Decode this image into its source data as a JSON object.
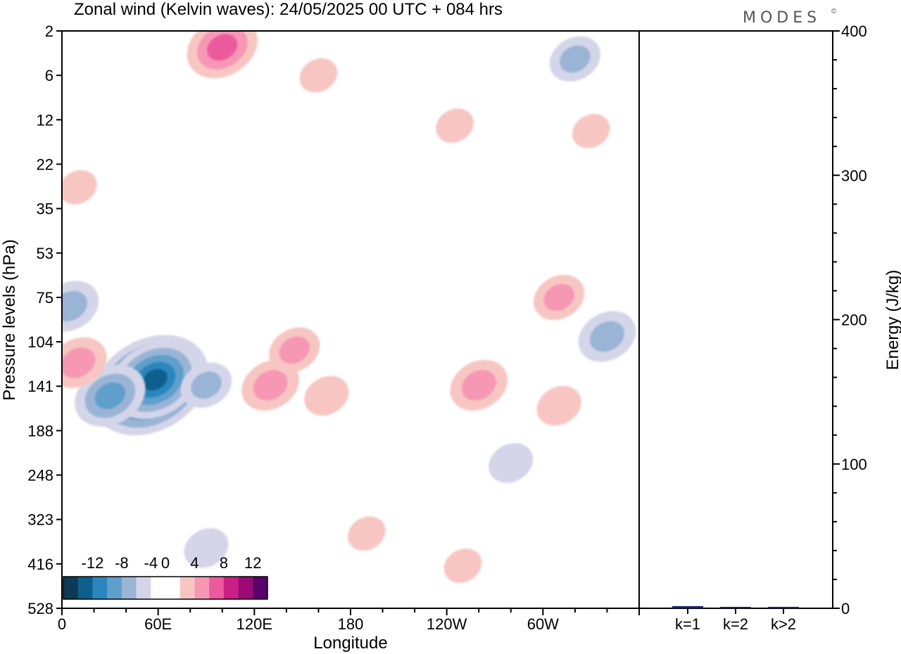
{
  "title": "Zonal wind (Kelvin waves):  24/05/2025  00 UTC  + 084 hrs",
  "brand": "MODES",
  "brand_mark": "©",
  "colors": {
    "neg": [
      "#0e3a56",
      "#0e5f8e",
      "#2b86bd",
      "#5f9fcb",
      "#9ab4d6",
      "#d4d5e8"
    ],
    "zero": "#ffffff",
    "pos": [
      "#f8c6c2",
      "#f698b4",
      "#ec5a9e",
      "#cc1f86",
      "#9c0a78",
      "#5a006a"
    ],
    "bar": "#1a1f6b"
  },
  "chart_data": [
    {
      "type": "heatmap",
      "title": "Zonal wind (Kelvin waves):  24/05/2025  00 UTC  + 084 hrs",
      "xlabel": "Longitude",
      "ylabel": "Pressure levels (hPa)",
      "x_ticks": [
        "0",
        "60E",
        "120E",
        "180",
        "120W",
        "60W"
      ],
      "x_tick_degrees": [
        0,
        60,
        120,
        180,
        240,
        300
      ],
      "xlim": [
        0,
        360
      ],
      "y_ticks": [
        "2",
        "6",
        "12",
        "22",
        "35",
        "53",
        "75",
        "104",
        "141",
        "188",
        "248",
        "323",
        "416",
        "528"
      ],
      "y_scale": "log",
      "y_inverted": true,
      "colorbar": {
        "labels": [
          "-12",
          "-8",
          "-4",
          "0",
          "4",
          "8",
          "12"
        ],
        "levels": [
          -14,
          -12,
          -10,
          -8,
          -6,
          -4,
          -2,
          2,
          4,
          6,
          8,
          10,
          12,
          14
        ]
      },
      "anomalies": [
        {
          "lon": 55,
          "p": 140,
          "value": -14
        },
        {
          "lon": 58,
          "p": 135,
          "value": -10
        },
        {
          "lon": 30,
          "p": 150,
          "value": -7
        },
        {
          "lon": 5,
          "p": 80,
          "value": -5
        },
        {
          "lon": 90,
          "p": 140,
          "value": -4
        },
        {
          "lon": 90,
          "p": 380,
          "value": -3
        },
        {
          "lon": 130,
          "p": 140,
          "value": 5
        },
        {
          "lon": 145,
          "p": 110,
          "value": 4
        },
        {
          "lon": 165,
          "p": 150,
          "value": 3
        },
        {
          "lon": 260,
          "p": 140,
          "value": 5
        },
        {
          "lon": 310,
          "p": 160,
          "value": 3
        },
        {
          "lon": 10,
          "p": 120,
          "value": 5
        },
        {
          "lon": 100,
          "p": 3,
          "value": 7
        },
        {
          "lon": 160,
          "p": 6,
          "value": 2
        },
        {
          "lon": 310,
          "p": 75,
          "value": 4
        },
        {
          "lon": 250,
          "p": 420,
          "value": 2
        },
        {
          "lon": 190,
          "p": 350,
          "value": 2
        },
        {
          "lon": 280,
          "p": 230,
          "value": -3
        },
        {
          "lon": 340,
          "p": 100,
          "value": -5
        },
        {
          "lon": 320,
          "p": 4,
          "value": -4
        },
        {
          "lon": 10,
          "p": 28,
          "value": 2
        },
        {
          "lon": 245,
          "p": 13,
          "value": 2
        },
        {
          "lon": 330,
          "p": 14,
          "value": 2
        }
      ]
    },
    {
      "type": "bar",
      "ylabel": "Energy (J/kg)",
      "categories": [
        "k=1",
        "k=2",
        "k>2"
      ],
      "values": [
        1.5,
        0.6,
        1.0
      ],
      "ylim": [
        0,
        400
      ],
      "y_ticks": [
        "0",
        "100",
        "200",
        "300",
        "400"
      ],
      "y_tick_values": [
        0,
        100,
        200,
        300,
        400
      ]
    }
  ]
}
